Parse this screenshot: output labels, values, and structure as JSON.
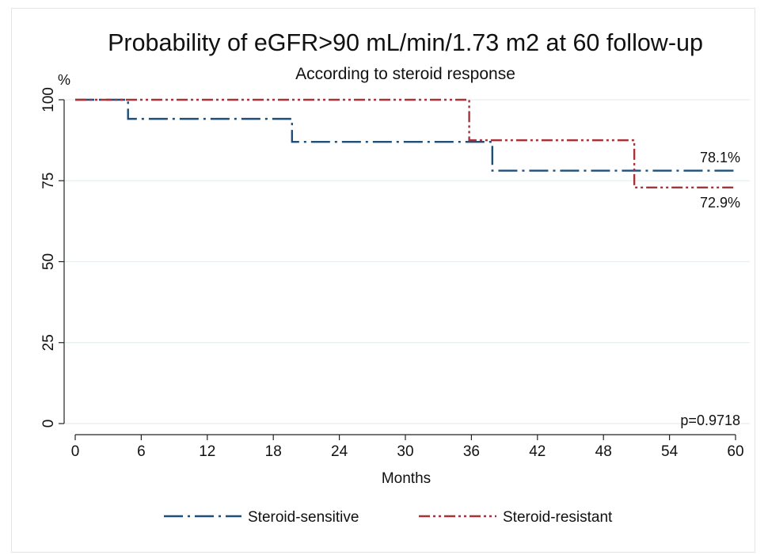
{
  "chart_data": {
    "type": "line",
    "title": "Probability of eGFR>90 mL/min/1.73 m2 at 60 follow-up",
    "subtitle": "According to steroid response",
    "xlabel": "Months",
    "ylabel": "%",
    "xlim": [
      0,
      60
    ],
    "ylim": [
      0,
      100
    ],
    "xticks": [
      0,
      6,
      12,
      18,
      24,
      30,
      36,
      42,
      48,
      54,
      60
    ],
    "yticks": [
      0,
      25,
      50,
      75,
      100
    ],
    "grid": true,
    "legend_position": "bottom",
    "annotation": "p=0.9718",
    "series": [
      {
        "name": "Steroid-sensitive",
        "color": "#1f4e79",
        "dash": "long-dash-dot",
        "end_label": "78.1%",
        "steps": [
          [
            0,
            100
          ],
          [
            4.8,
            94.1
          ],
          [
            19.7,
            87.0
          ],
          [
            37.9,
            78.1
          ],
          [
            60,
            78.1
          ]
        ]
      },
      {
        "name": "Steroid-resistant",
        "color": "#a83238",
        "dash": "dash-dot-dot",
        "end_label": "72.9%",
        "steps": [
          [
            0,
            100
          ],
          [
            35.8,
            87.5
          ],
          [
            50.8,
            72.9
          ],
          [
            60,
            72.9
          ]
        ]
      }
    ]
  }
}
